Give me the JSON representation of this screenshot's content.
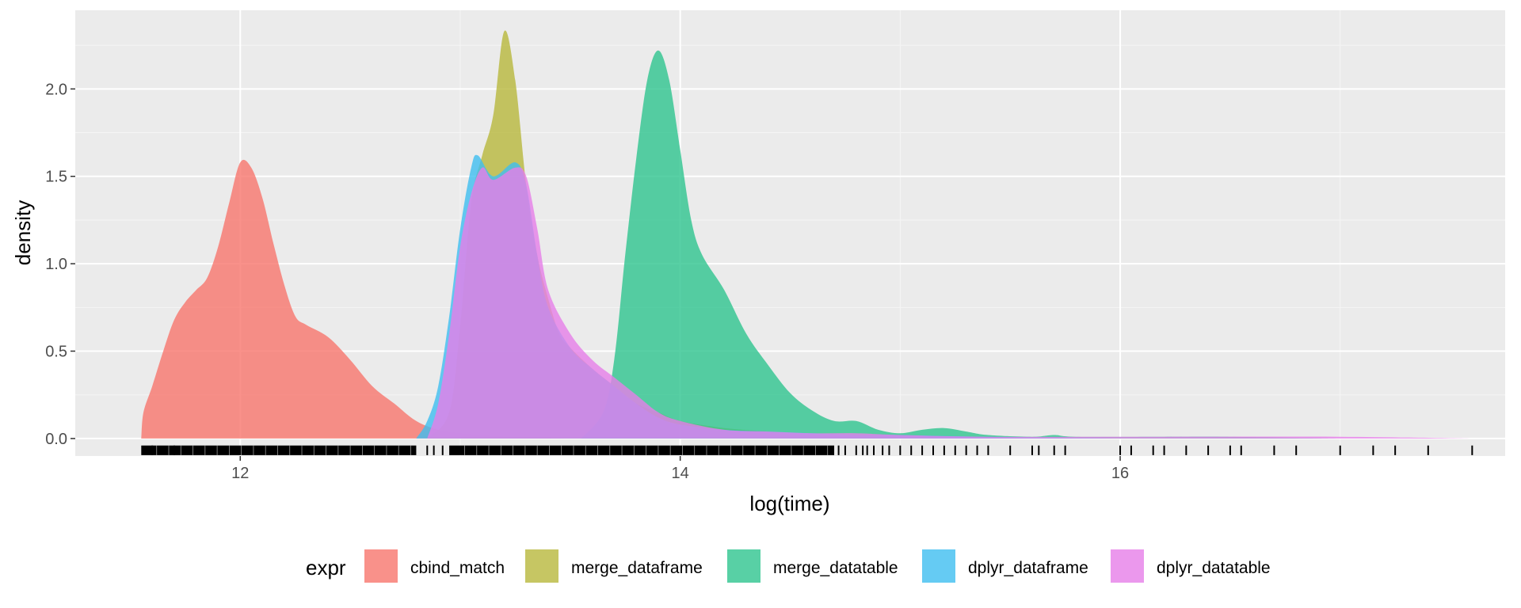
{
  "chart_data": {
    "type": "area",
    "subtype": "density",
    "title": "",
    "xlabel": "log(time)",
    "ylabel": "density",
    "xlim": [
      11.25,
      17.75
    ],
    "ylim": [
      -0.1,
      2.45
    ],
    "x_ticks": [
      12,
      14,
      16
    ],
    "y_ticks": [
      0.0,
      0.5,
      1.0,
      1.5,
      2.0
    ],
    "x_tick_labels": [
      "12",
      "14",
      "16"
    ],
    "y_tick_labels": [
      "0.0",
      "0.5",
      "1.0",
      "1.5",
      "2.0"
    ],
    "grid": true,
    "legend": {
      "title": "expr",
      "position": "bottom"
    },
    "series": [
      {
        "name": "cbind_match",
        "color": "#F8766D",
        "points": [
          [
            11.55,
            0.0
          ],
          [
            11.56,
            0.15
          ],
          [
            11.6,
            0.3
          ],
          [
            11.65,
            0.5
          ],
          [
            11.7,
            0.68
          ],
          [
            11.75,
            0.78
          ],
          [
            11.8,
            0.85
          ],
          [
            11.85,
            0.92
          ],
          [
            11.9,
            1.1
          ],
          [
            11.95,
            1.35
          ],
          [
            12.0,
            1.58
          ],
          [
            12.05,
            1.55
          ],
          [
            12.1,
            1.38
          ],
          [
            12.15,
            1.12
          ],
          [
            12.2,
            0.88
          ],
          [
            12.25,
            0.7
          ],
          [
            12.3,
            0.65
          ],
          [
            12.4,
            0.58
          ],
          [
            12.5,
            0.45
          ],
          [
            12.6,
            0.3
          ],
          [
            12.7,
            0.2
          ],
          [
            12.8,
            0.1
          ],
          [
            12.9,
            0.05
          ],
          [
            13.0,
            0.03
          ],
          [
            13.2,
            0.01
          ],
          [
            13.5,
            0.0
          ]
        ]
      },
      {
        "name": "merge_dataframe",
        "color": "#B8B83C",
        "points": [
          [
            12.85,
            0.0
          ],
          [
            12.95,
            0.15
          ],
          [
            13.0,
            0.65
          ],
          [
            13.05,
            1.35
          ],
          [
            13.1,
            1.62
          ],
          [
            13.15,
            1.85
          ],
          [
            13.2,
            2.33
          ],
          [
            13.25,
            2.05
          ],
          [
            13.3,
            1.45
          ],
          [
            13.35,
            1.05
          ],
          [
            13.4,
            0.8
          ],
          [
            13.45,
            0.6
          ],
          [
            13.5,
            0.52
          ],
          [
            13.6,
            0.4
          ],
          [
            13.7,
            0.3
          ],
          [
            13.8,
            0.2
          ],
          [
            13.9,
            0.15
          ],
          [
            14.0,
            0.1
          ],
          [
            14.2,
            0.06
          ],
          [
            14.4,
            0.04
          ],
          [
            14.6,
            0.02
          ],
          [
            15.0,
            0.0
          ]
        ]
      },
      {
        "name": "merge_datatable",
        "color": "#2EC48F",
        "points": [
          [
            13.55,
            0.0
          ],
          [
            13.65,
            0.15
          ],
          [
            13.7,
            0.45
          ],
          [
            13.75,
            1.05
          ],
          [
            13.8,
            1.6
          ],
          [
            13.85,
            2.05
          ],
          [
            13.9,
            2.22
          ],
          [
            13.95,
            2.05
          ],
          [
            14.0,
            1.65
          ],
          [
            14.05,
            1.25
          ],
          [
            14.1,
            1.05
          ],
          [
            14.2,
            0.85
          ],
          [
            14.3,
            0.6
          ],
          [
            14.4,
            0.42
          ],
          [
            14.5,
            0.26
          ],
          [
            14.6,
            0.16
          ],
          [
            14.7,
            0.1
          ],
          [
            14.8,
            0.1
          ],
          [
            14.9,
            0.05
          ],
          [
            15.0,
            0.03
          ],
          [
            15.1,
            0.05
          ],
          [
            15.2,
            0.06
          ],
          [
            15.3,
            0.04
          ],
          [
            15.4,
            0.02
          ],
          [
            15.6,
            0.01
          ],
          [
            15.7,
            0.02
          ],
          [
            15.8,
            0.01
          ],
          [
            16.2,
            0.01
          ],
          [
            16.5,
            0.01
          ],
          [
            17.0,
            0.0
          ]
        ]
      },
      {
        "name": "dplyr_dataframe",
        "color": "#3FBEF0",
        "points": [
          [
            12.8,
            0.0
          ],
          [
            12.85,
            0.1
          ],
          [
            12.9,
            0.3
          ],
          [
            12.95,
            0.7
          ],
          [
            13.0,
            1.2
          ],
          [
            13.05,
            1.55
          ],
          [
            13.08,
            1.62
          ],
          [
            13.15,
            1.5
          ],
          [
            13.25,
            1.58
          ],
          [
            13.3,
            1.45
          ],
          [
            13.35,
            1.05
          ],
          [
            13.4,
            0.75
          ],
          [
            13.5,
            0.52
          ],
          [
            13.6,
            0.4
          ],
          [
            13.7,
            0.3
          ],
          [
            13.8,
            0.2
          ],
          [
            13.9,
            0.12
          ],
          [
            14.0,
            0.08
          ],
          [
            14.2,
            0.05
          ],
          [
            14.4,
            0.04
          ],
          [
            14.6,
            0.03
          ],
          [
            14.8,
            0.02
          ],
          [
            15.0,
            0.02
          ],
          [
            15.4,
            0.01
          ],
          [
            16.0,
            0.0
          ]
        ]
      },
      {
        "name": "dplyr_datatable",
        "color": "#E67EE8",
        "points": [
          [
            12.85,
            0.0
          ],
          [
            12.9,
            0.2
          ],
          [
            12.95,
            0.6
          ],
          [
            13.0,
            1.1
          ],
          [
            13.05,
            1.4
          ],
          [
            13.1,
            1.55
          ],
          [
            13.15,
            1.48
          ],
          [
            13.25,
            1.55
          ],
          [
            13.3,
            1.5
          ],
          [
            13.35,
            1.2
          ],
          [
            13.4,
            0.85
          ],
          [
            13.5,
            0.6
          ],
          [
            13.6,
            0.45
          ],
          [
            13.7,
            0.35
          ],
          [
            13.8,
            0.25
          ],
          [
            13.9,
            0.15
          ],
          [
            14.0,
            0.1
          ],
          [
            14.2,
            0.05
          ],
          [
            14.4,
            0.04
          ],
          [
            14.6,
            0.03
          ],
          [
            14.8,
            0.03
          ],
          [
            15.0,
            0.02
          ],
          [
            15.4,
            0.01
          ],
          [
            16.2,
            0.01
          ],
          [
            17.0,
            0.01
          ],
          [
            17.6,
            0.0
          ]
        ]
      }
    ],
    "rug": {
      "dense_ranges": [
        [
          11.55,
          12.8
        ],
        [
          12.95,
          14.7
        ]
      ],
      "sparse_values": [
        11.6,
        11.7,
        12.85,
        12.88,
        12.92,
        14.72,
        14.75,
        14.8,
        14.83,
        14.85,
        14.88,
        14.92,
        14.95,
        15.0,
        15.05,
        15.1,
        15.15,
        15.2,
        15.25,
        15.3,
        15.35,
        15.4,
        15.5,
        15.6,
        15.63,
        15.7,
        15.75,
        16.0,
        16.05,
        16.15,
        16.2,
        16.3,
        16.4,
        16.5,
        16.55,
        16.7,
        16.8,
        17.0,
        17.15,
        17.25,
        17.4,
        17.6
      ]
    }
  }
}
